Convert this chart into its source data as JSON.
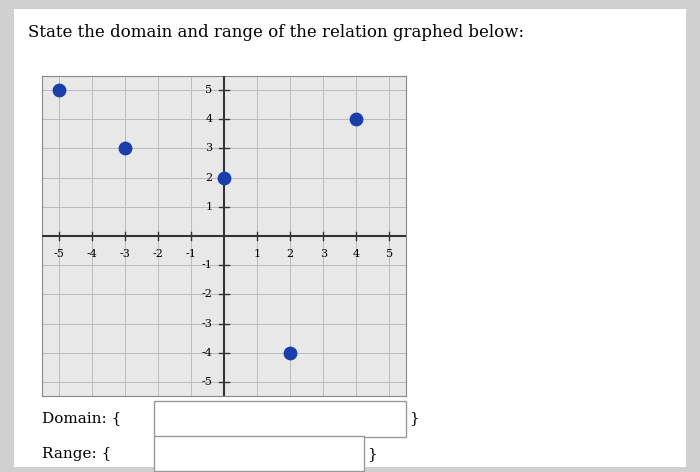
{
  "title": "State the domain and range of the relation graphed below:",
  "points": [
    [
      -5,
      5
    ],
    [
      -3,
      3
    ],
    [
      0,
      2
    ],
    [
      4,
      4
    ],
    [
      2,
      -4
    ]
  ],
  "point_color": "#1a3faa",
  "point_size": 80,
  "xlim": [
    -5.5,
    5.5
  ],
  "ylim": [
    -5.5,
    5.5
  ],
  "xticks": [
    -5,
    -4,
    -3,
    -2,
    -1,
    1,
    2,
    3,
    4,
    5
  ],
  "yticks": [
    -5,
    -4,
    -3,
    -2,
    -1,
    1,
    2,
    3,
    4,
    5
  ],
  "grid_color": "#bbbbbb",
  "axis_color": "#333333",
  "card_bg": "#ffffff",
  "outer_bg": "#d0d0d0",
  "title_fontsize": 12,
  "tick_fontsize": 8,
  "label_fontsize": 11
}
